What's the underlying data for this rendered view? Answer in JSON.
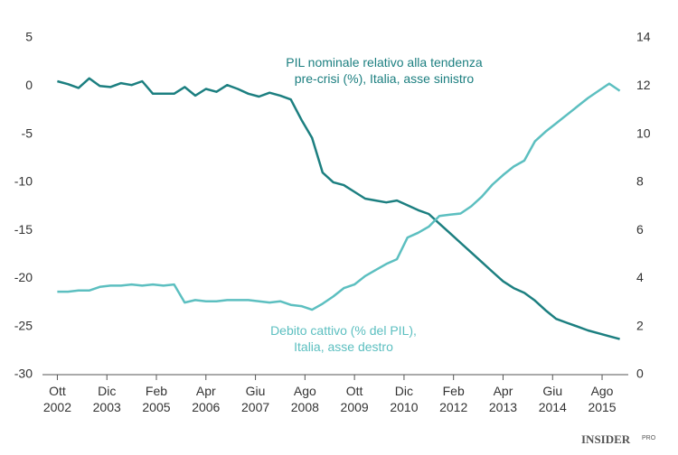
{
  "chart_data": {
    "type": "line",
    "xlim": [
      2002.4,
      2016.2
    ],
    "xticks": [
      {
        "value": 2002.75,
        "label": "Ott\n2002"
      },
      {
        "value": 2003.917,
        "label": "Dic\n2003"
      },
      {
        "value": 2005.083,
        "label": "Feb\n2005"
      },
      {
        "value": 2006.25,
        "label": "Apr\n2006"
      },
      {
        "value": 2007.417,
        "label": "Giu\n2007"
      },
      {
        "value": 2008.583,
        "label": "Ago\n2008"
      },
      {
        "value": 2009.75,
        "label": "Ott\n2009"
      },
      {
        "value": 2010.917,
        "label": "Dic\n2010"
      },
      {
        "value": 2012.083,
        "label": "Feb\n2012"
      },
      {
        "value": 2013.25,
        "label": "Apr\n2013"
      },
      {
        "value": 2014.417,
        "label": "Giu\n2014"
      },
      {
        "value": 2015.583,
        "label": "Ago\n2015"
      }
    ],
    "ylim": [
      -30,
      5
    ],
    "yticks": [
      -30,
      -25,
      -20,
      -15,
      -10,
      -5,
      0,
      5
    ],
    "y2lim": [
      0,
      14
    ],
    "y2ticks": [
      0,
      2,
      4,
      6,
      8,
      10,
      12,
      14
    ],
    "x": [
      2002.75,
      2003,
      2003.25,
      2003.5,
      2003.75,
      2004,
      2004.25,
      2004.5,
      2004.75,
      2005,
      2005.25,
      2005.5,
      2005.75,
      2006,
      2006.25,
      2006.5,
      2006.75,
      2007,
      2007.25,
      2007.5,
      2007.75,
      2008,
      2008.25,
      2008.5,
      2008.75,
      2009,
      2009.25,
      2009.5,
      2009.75,
      2010,
      2010.25,
      2010.5,
      2010.75,
      2011,
      2011.25,
      2011.5,
      2011.75,
      2012,
      2012.25,
      2012.5,
      2012.75,
      2013,
      2013.25,
      2013.5,
      2013.75,
      2014,
      2014.25,
      2014.5,
      2014.75,
      2015,
      2015.25,
      2015.5,
      2015.75,
      2016
    ],
    "series": [
      {
        "name": "PIL nominale relativo alla tendenza\npre-crisi (%), Italia, asse sinistro",
        "color": "#1c7f80",
        "axis": "y",
        "values": [
          0.5,
          0.2,
          -0.2,
          0.8,
          0.0,
          -0.1,
          0.3,
          0.1,
          0.5,
          -0.8,
          -0.8,
          -0.8,
          -0.1,
          -1.0,
          -0.3,
          -0.6,
          0.1,
          -0.3,
          -0.8,
          -1.1,
          -0.7,
          -1.0,
          -1.4,
          -3.5,
          -5.4,
          -9.0,
          -10.0,
          -10.3,
          -11.0,
          -11.7,
          -11.9,
          -12.1,
          -11.9,
          -12.4,
          -12.9,
          -13.3,
          -14.3,
          -15.3,
          -16.3,
          -17.3,
          -18.3,
          -19.3,
          -20.3,
          -21.0,
          -21.5,
          -22.3,
          -23.3,
          -24.2,
          -24.6,
          -25.0,
          -25.4,
          -25.7,
          -26.0,
          -26.3
        ]
      },
      {
        "name": "Debito cattivo (% del PIL),\nItalia, asse destro",
        "color": "#5cbfc0",
        "axis": "y2",
        "values": [
          3.45,
          3.45,
          3.5,
          3.5,
          3.65,
          3.7,
          3.7,
          3.75,
          3.7,
          3.75,
          3.7,
          3.75,
          3.0,
          3.1,
          3.05,
          3.05,
          3.1,
          3.1,
          3.1,
          3.05,
          3.0,
          3.05,
          2.9,
          2.85,
          2.7,
          2.95,
          3.25,
          3.6,
          3.75,
          4.1,
          4.35,
          4.6,
          4.8,
          5.7,
          5.9,
          6.15,
          6.6,
          6.65,
          6.7,
          7.0,
          7.4,
          7.9,
          8.3,
          8.65,
          8.9,
          9.7,
          10.1,
          10.45,
          10.8,
          11.15,
          11.5,
          11.8,
          12.1,
          11.8
        ]
      }
    ],
    "logo": {
      "main": "INSIDER",
      "sub": "PRO"
    }
  }
}
